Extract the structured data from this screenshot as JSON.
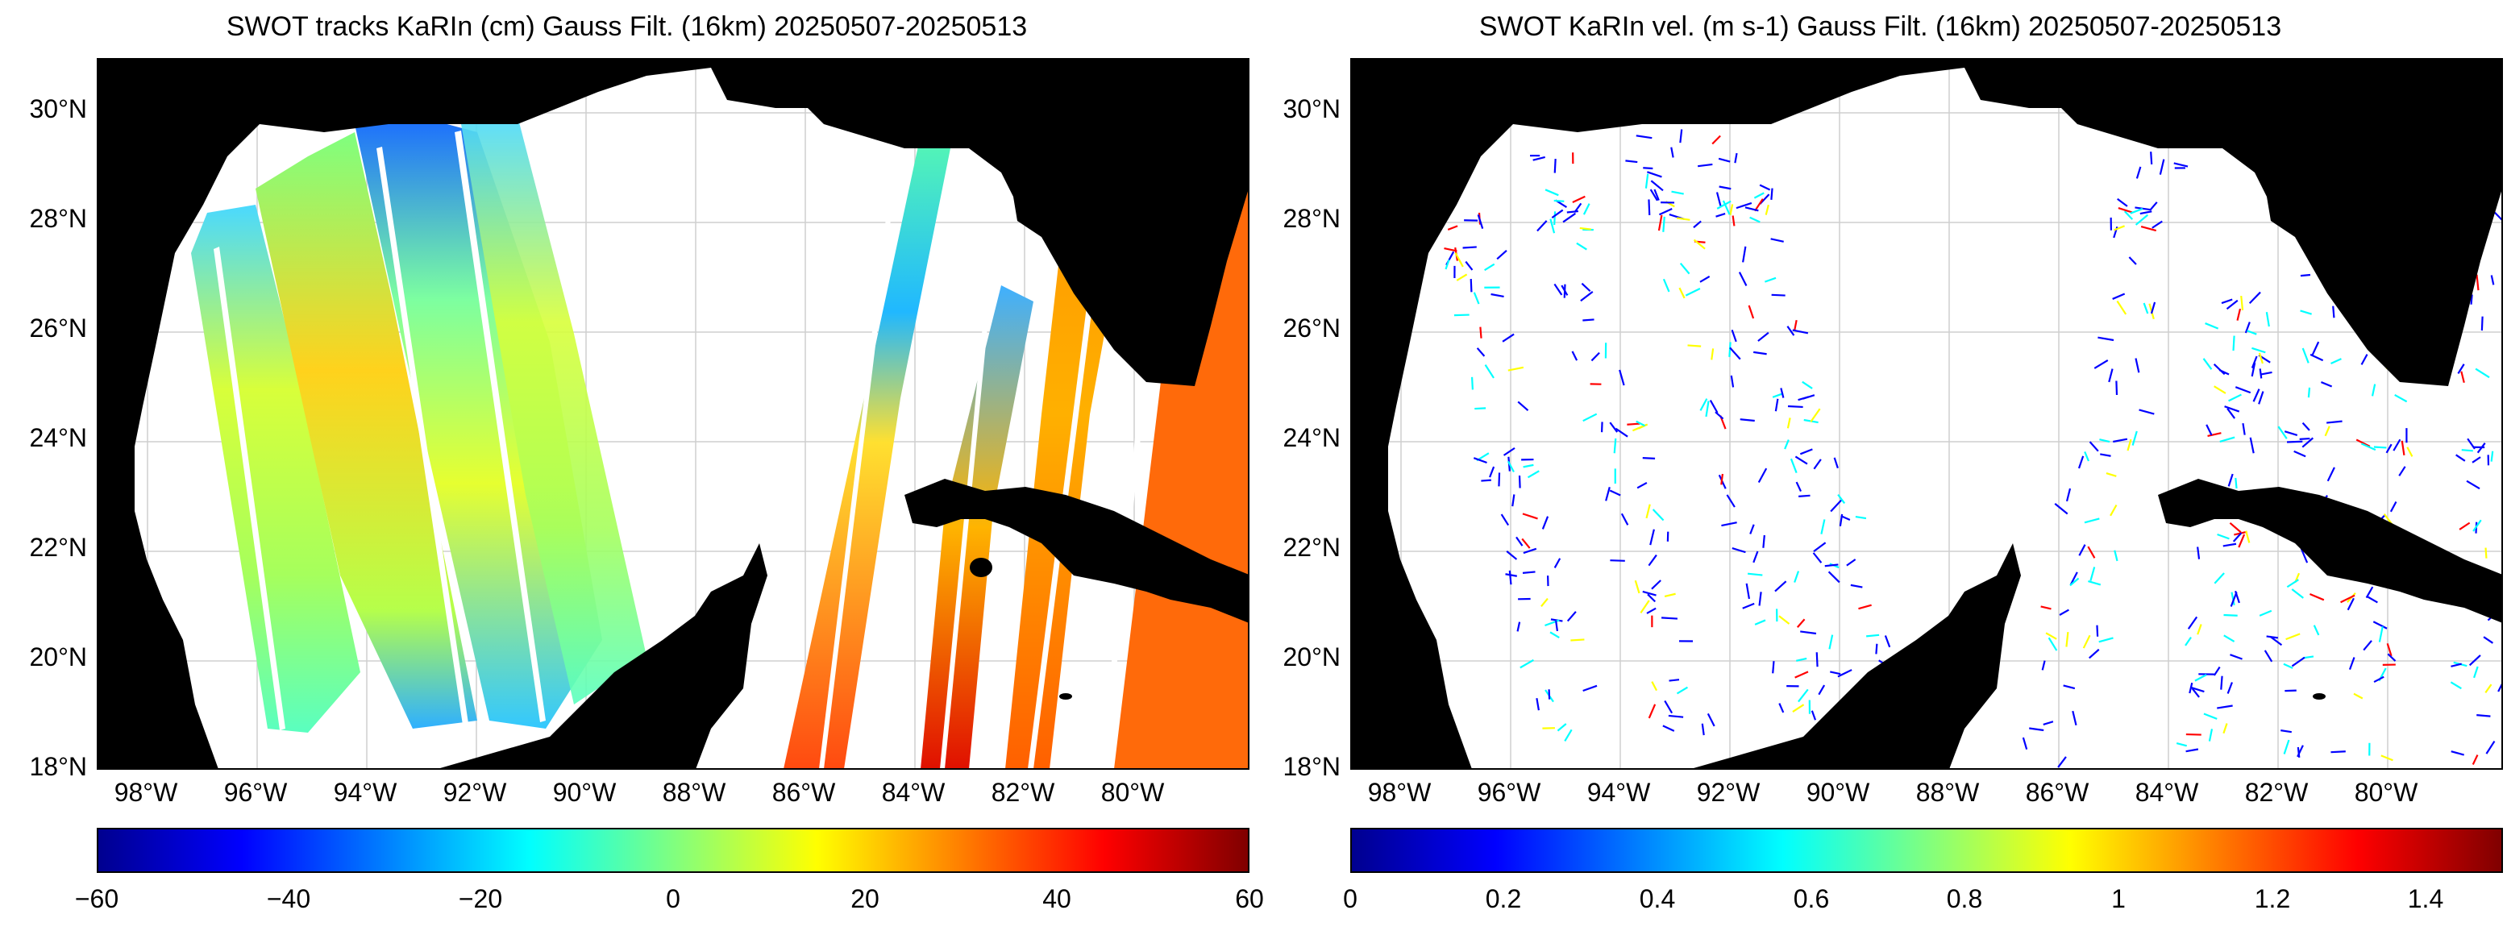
{
  "panels": [
    {
      "id": "ssh",
      "title": "SWOT tracks KaRIn (cm) Gauss Filt. (16km) 20250507-20250513",
      "y_ticks": [
        "30°N",
        "28°N",
        "26°N",
        "24°N",
        "22°N",
        "20°N",
        "18°N"
      ],
      "x_ticks": [
        "98°W",
        "96°W",
        "94°W",
        "92°W",
        "90°W",
        "88°W",
        "86°W",
        "84°W",
        "82°W",
        "80°W"
      ],
      "colorbar": {
        "colormap": "jet",
        "min": -60,
        "max": 60,
        "ticks": [
          "−60",
          "−40",
          "−20",
          "0",
          "20",
          "40",
          "60"
        ]
      }
    },
    {
      "id": "vel",
      "title": "SWOT KaRIn vel. (m s-1) Gauss Filt. (16km) 20250507-20250513",
      "y_ticks": [
        "30°N",
        "28°N",
        "26°N",
        "24°N",
        "22°N",
        "20°N",
        "18°N"
      ],
      "x_ticks": [
        "98°W",
        "96°W",
        "94°W",
        "92°W",
        "90°W",
        "88°W",
        "86°W",
        "84°W",
        "82°W",
        "80°W"
      ],
      "colorbar": {
        "colormap": "jet",
        "min": 0,
        "max": 1.5,
        "ticks": [
          "0",
          "0.2",
          "0.4",
          "0.6",
          "0.8",
          "1",
          "1.2",
          "1.4"
        ]
      }
    }
  ],
  "map": {
    "lon_range": [
      -99,
      -78
    ],
    "lat_range": [
      18,
      31
    ],
    "land_color": "#000000",
    "grid": true
  },
  "colors": {
    "jet": [
      "#00008f",
      "#0000ff",
      "#00ffff",
      "#ffff00",
      "#ff0000",
      "#800000"
    ]
  }
}
